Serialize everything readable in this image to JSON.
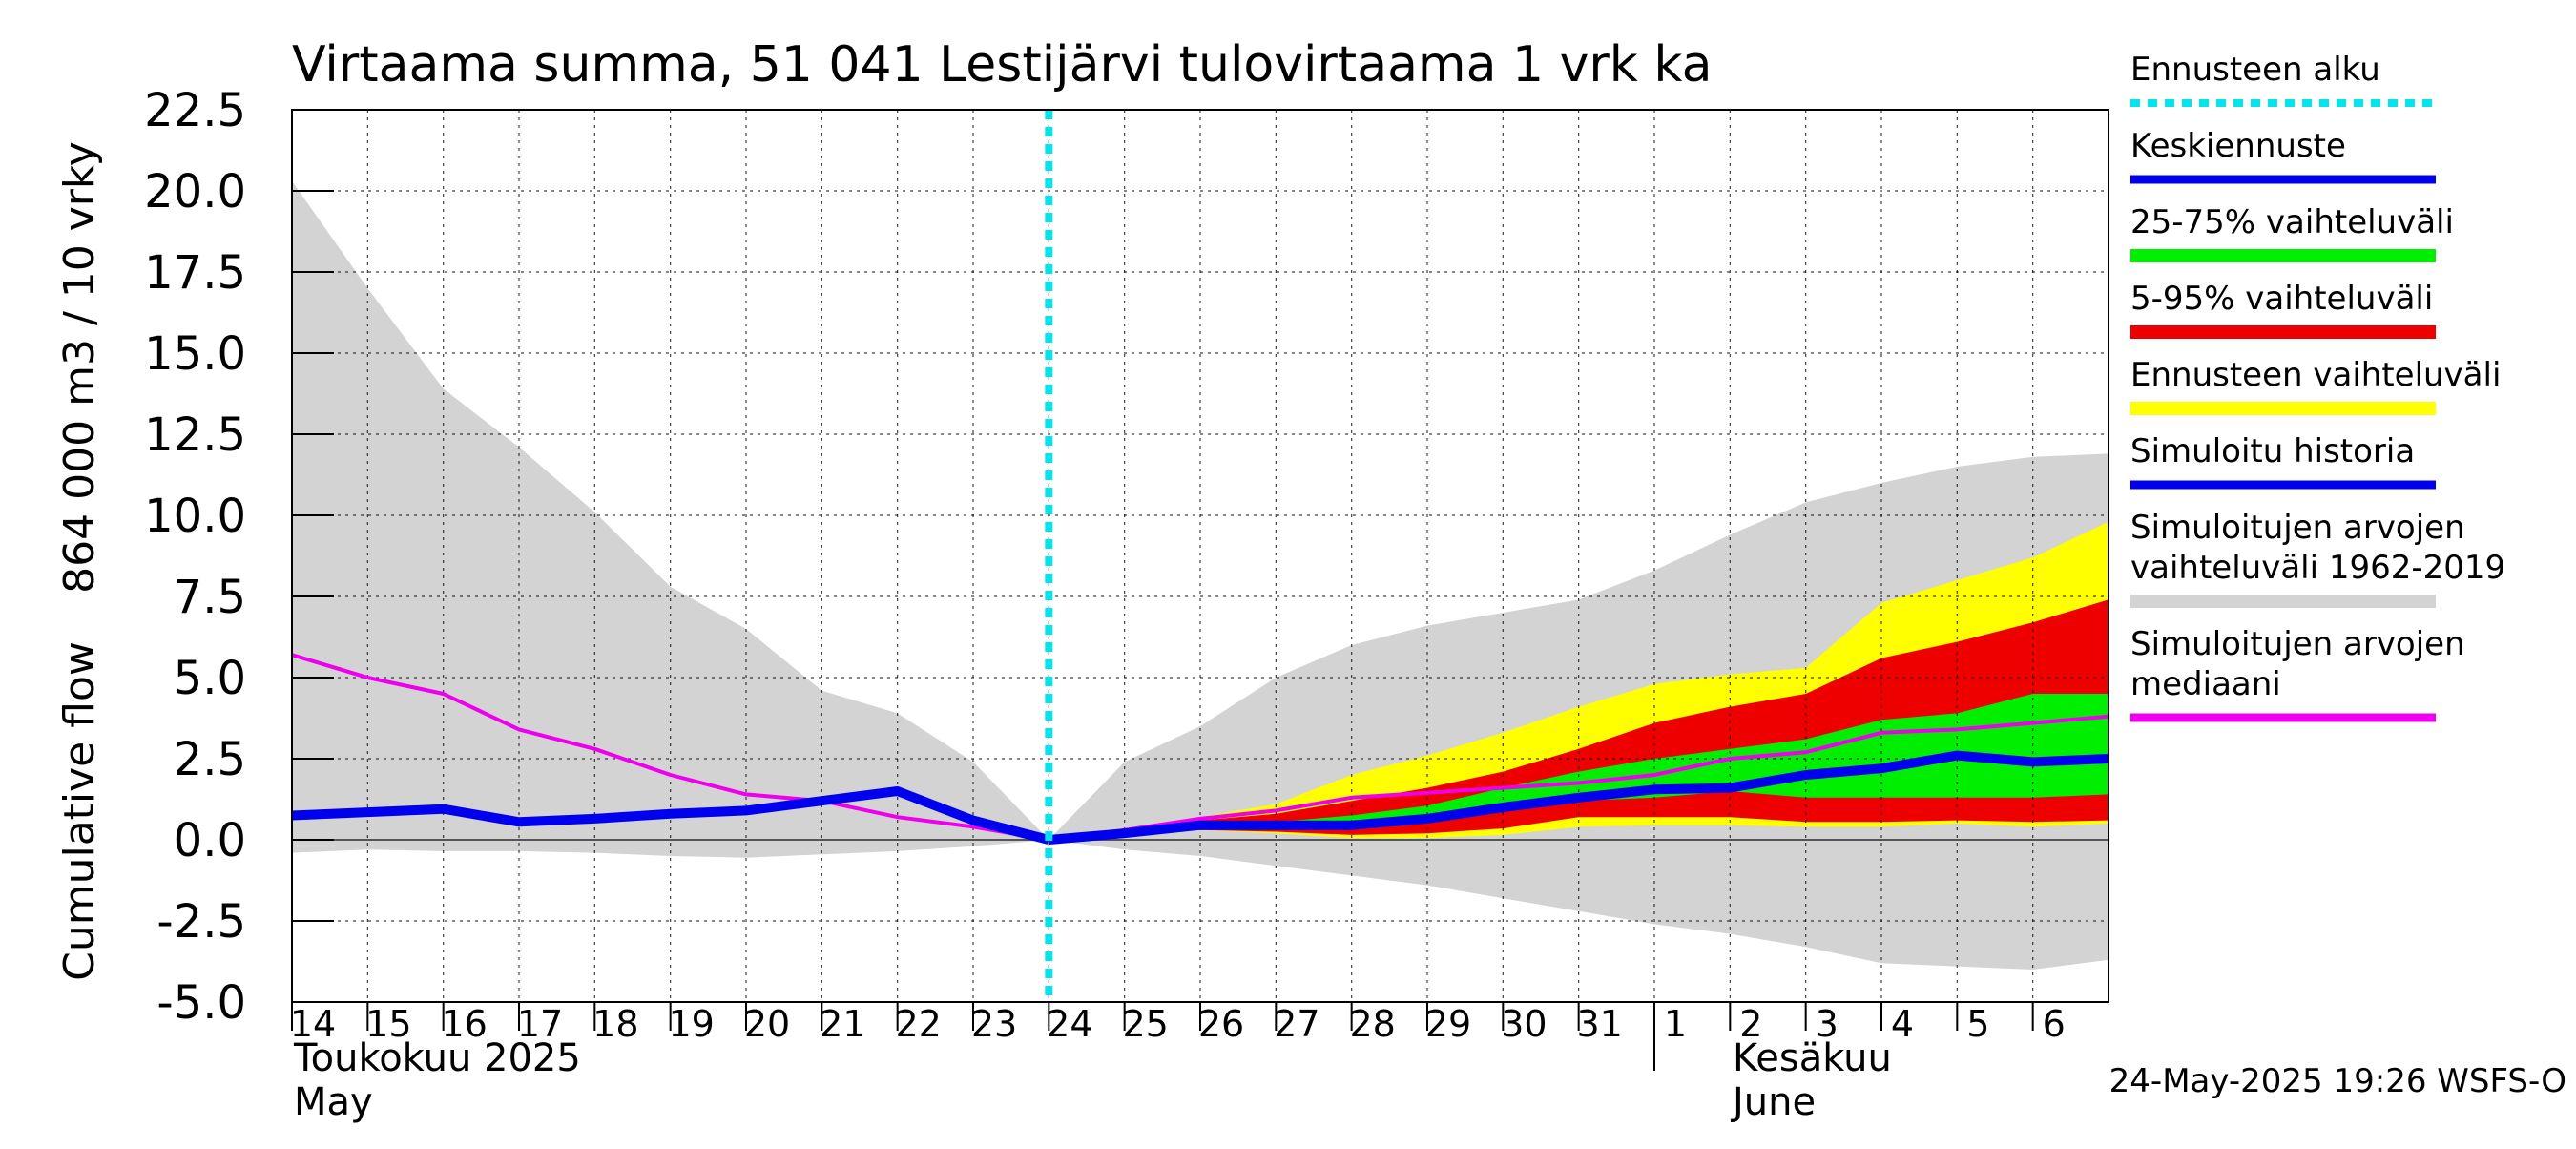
{
  "chart_data": {
    "type": "area",
    "title": "Virtaama summa, 51 041 Lestijärvi tulovirtaama 1 vrk ka",
    "ylabel_top": "864 000 m3 / 10 vrky",
    "ylabel_bottom": "Cumulative flow",
    "ylim": [
      -5.0,
      22.5
    ],
    "yticks": [
      "22.5",
      "20.0",
      "17.5",
      "15.0",
      "12.5",
      "10.0",
      "7.5",
      "5.0",
      "2.5",
      "0.0",
      "-2.5",
      "-5.0"
    ],
    "xlim": [
      0,
      24
    ],
    "x_tick_labels": [
      "14",
      "15",
      "16",
      "17",
      "18",
      "19",
      "20",
      "21",
      "22",
      "23",
      "24",
      "25",
      "26",
      "27",
      "28",
      "29",
      "30",
      "31",
      "1",
      "2",
      "3",
      "4",
      "5",
      "6"
    ],
    "month_labels": {
      "may_fi": "Toukokuu  2025",
      "may_en": "May",
      "june_fi": "Kesäkuu",
      "june_en": "June"
    },
    "forecast_start_x": 10,
    "timestamp": "24-May-2025 19:26 WSFS-O",
    "legend": [
      {
        "label": "Ennusteen alku",
        "color": "#00e5ee",
        "style": "dotted"
      },
      {
        "label": "Keskiennuste",
        "color": "#0000ee",
        "style": "line"
      },
      {
        "label": "25-75% vaihteluväli",
        "color": "#00ee00",
        "style": "band"
      },
      {
        "label": "5-95% vaihteluväli",
        "color": "#ee0000",
        "style": "band"
      },
      {
        "label": "Ennusteen vaihteluväli",
        "color": "#ffff00",
        "style": "band"
      },
      {
        "label": "Simuloitu historia",
        "color": "#0000ee",
        "style": "line"
      },
      {
        "label": "Simuloitujen arvojen vaihteluväli 1962-2019",
        "color": "#d3d3d3",
        "style": "band"
      },
      {
        "label": "Simuloitujen arvojen mediaani",
        "color": "#ee00ee",
        "style": "line"
      }
    ],
    "legend_lines": [
      [
        "Ennusteen alku"
      ],
      [
        "Keskiennuste"
      ],
      [
        "25-75% vaihteluväli"
      ],
      [
        "5-95% vaihteluväli"
      ],
      [
        "Ennusteen vaihteluväli"
      ],
      [
        "Simuloitu historia"
      ],
      [
        "Simuloitujen arvojen",
        "vaihteluväli 1962-2019"
      ],
      [
        "Simuloitujen arvojen",
        "mediaani"
      ]
    ],
    "hist_range": {
      "x": [
        0,
        1,
        2,
        3,
        4,
        5,
        6,
        7,
        8,
        9,
        10,
        11,
        12,
        13,
        14,
        15,
        16,
        17,
        18,
        19,
        20,
        21,
        22,
        23,
        24
      ],
      "lo": [
        -0.4,
        -0.3,
        -0.35,
        -0.35,
        -0.4,
        -0.5,
        -0.55,
        -0.45,
        -0.35,
        -0.2,
        0,
        -0.3,
        -0.5,
        -0.8,
        -1.1,
        -1.4,
        -1.8,
        -2.2,
        -2.6,
        -2.9,
        -3.3,
        -3.8,
        -3.9,
        -4.0,
        -3.7
      ],
      "hi": [
        20.3,
        17.0,
        13.9,
        12.1,
        10.1,
        7.8,
        6.5,
        4.6,
        3.9,
        2.4,
        0,
        2.4,
        3.5,
        5.0,
        6.0,
        6.6,
        7.0,
        7.4,
        8.3,
        9.4,
        10.4,
        11.0,
        11.5,
        11.8,
        11.9
      ]
    },
    "sim_history": {
      "x": [
        0,
        1,
        2,
        3,
        4,
        5,
        6,
        7,
        8,
        9,
        10
      ],
      "y": [
        0.75,
        0.85,
        0.95,
        0.55,
        0.65,
        0.8,
        0.9,
        1.2,
        1.5,
        0.6,
        0
      ]
    },
    "median": {
      "x": [
        0,
        1,
        2,
        3,
        4,
        5,
        6,
        7,
        8,
        9,
        10,
        11,
        12,
        13,
        14,
        15,
        16,
        17,
        18,
        19,
        20,
        21,
        22,
        23,
        24
      ],
      "y": [
        5.7,
        5.0,
        4.5,
        3.4,
        2.8,
        2.0,
        1.4,
        1.2,
        0.7,
        0.4,
        0,
        0.3,
        0.65,
        0.9,
        1.3,
        1.45,
        1.6,
        1.75,
        2.0,
        2.5,
        2.7,
        3.3,
        3.4,
        3.6,
        3.8
      ]
    },
    "forecast": {
      "x": [
        10,
        11,
        12,
        13,
        14,
        15,
        16,
        17,
        18,
        19,
        20,
        21,
        22,
        23,
        24
      ],
      "p0": [
        0,
        0.15,
        0.3,
        0.2,
        0.05,
        0.05,
        0.15,
        0.4,
        0.45,
        0.45,
        0.4,
        0.4,
        0.5,
        0.4,
        0.5
      ],
      "p5": [
        0,
        0.15,
        0.3,
        0.25,
        0.15,
        0.2,
        0.35,
        0.7,
        0.7,
        0.7,
        0.55,
        0.55,
        0.6,
        0.55,
        0.6
      ],
      "p25": [
        0,
        0.2,
        0.35,
        0.35,
        0.35,
        0.55,
        0.9,
        1.2,
        1.3,
        1.5,
        1.3,
        1.3,
        1.3,
        1.3,
        1.4
      ],
      "mean": [
        0,
        0.2,
        0.45,
        0.45,
        0.45,
        0.65,
        1.0,
        1.3,
        1.55,
        1.6,
        2.0,
        2.2,
        2.6,
        2.4,
        2.5
      ],
      "p75": [
        0,
        0.25,
        0.5,
        0.55,
        0.75,
        1.05,
        1.6,
        2.1,
        2.5,
        2.8,
        3.1,
        3.7,
        3.9,
        4.5,
        4.5
      ],
      "p95": [
        0,
        0.3,
        0.6,
        0.8,
        1.2,
        1.6,
        2.1,
        2.8,
        3.6,
        4.1,
        4.5,
        5.6,
        6.1,
        6.7,
        7.4
      ],
      "p100": [
        0,
        0.35,
        0.7,
        1.1,
        2.0,
        2.6,
        3.3,
        4.1,
        4.8,
        5.1,
        5.3,
        7.3,
        8.0,
        8.7,
        9.8
      ]
    }
  }
}
